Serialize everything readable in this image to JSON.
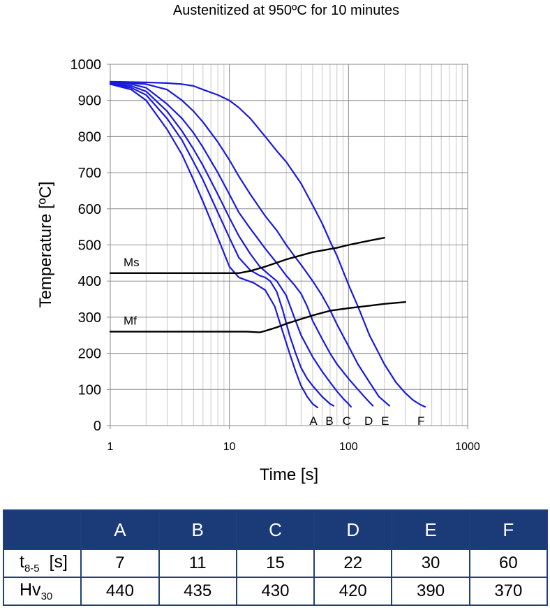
{
  "chart_data": {
    "type": "line",
    "title": "Austenitized at 950ºC for 10 minutes",
    "xlabel": "Time [s]",
    "ylabel": "Temperature [ºC]",
    "xscale": "log",
    "xlim": [
      1,
      1000
    ],
    "ylim": [
      0,
      1000
    ],
    "xticks": [
      1,
      10,
      100,
      1000
    ],
    "xtick_labels": [
      "1",
      "10",
      "100",
      "1000"
    ],
    "yticks": [
      0,
      100,
      200,
      300,
      400,
      500,
      600,
      700,
      800,
      900,
      1000
    ],
    "ytick_labels": [
      "0",
      "100",
      "200",
      "300",
      "400",
      "500",
      "600",
      "700",
      "800",
      "900",
      "1000"
    ],
    "grid": true,
    "series": [
      {
        "name": "A",
        "color": "#1a1adc",
        "x": [
          1,
          1.5,
          2,
          3,
          4,
          5,
          6,
          8,
          10,
          12,
          14,
          16,
          20,
          24,
          28,
          32,
          36,
          40,
          45,
          50,
          55
        ],
        "y": [
          945,
          930,
          900,
          820,
          750,
          680,
          620,
          520,
          440,
          410,
          402,
          395,
          375,
          330,
          260,
          200,
          150,
          110,
          80,
          60,
          50
        ]
      },
      {
        "name": "B",
        "color": "#1a1adc",
        "x": [
          1,
          1.5,
          2,
          3,
          4,
          5,
          6,
          8,
          10,
          12,
          15,
          18,
          20,
          22,
          25,
          28,
          32,
          36,
          40,
          45,
          50,
          60,
          70,
          75
        ],
        "y": [
          945,
          935,
          915,
          850,
          790,
          730,
          680,
          590,
          520,
          465,
          430,
          415,
          410,
          400,
          370,
          320,
          250,
          200,
          160,
          130,
          110,
          80,
          60,
          55
        ]
      },
      {
        "name": "C",
        "color": "#1a1adc",
        "x": [
          1,
          1.5,
          2,
          3,
          4,
          5,
          6,
          8,
          10,
          12,
          15,
          18,
          22,
          25,
          30,
          35,
          40,
          50,
          60,
          70,
          80,
          90,
          100,
          105
        ],
        "y": [
          945,
          940,
          925,
          870,
          815,
          765,
          720,
          640,
          575,
          525,
          475,
          440,
          415,
          400,
          360,
          300,
          250,
          190,
          150,
          120,
          95,
          75,
          60,
          52
        ]
      },
      {
        "name": "D",
        "color": "#1a1adc",
        "x": [
          1,
          1.5,
          2,
          3,
          4,
          5,
          6,
          8,
          10,
          12,
          15,
          20,
          25,
          30,
          35,
          40,
          45,
          50,
          60,
          70,
          80,
          100,
          120,
          140,
          160
        ],
        "y": [
          948,
          945,
          935,
          890,
          850,
          810,
          770,
          700,
          640,
          590,
          545,
          490,
          450,
          415,
          390,
          365,
          330,
          290,
          240,
          200,
          170,
          130,
          100,
          75,
          55
        ]
      },
      {
        "name": "E",
        "color": "#1a1adc",
        "x": [
          1,
          1.5,
          2,
          3,
          4,
          5,
          6,
          8,
          10,
          12,
          15,
          20,
          25,
          30,
          35,
          40,
          50,
          60,
          70,
          80,
          100,
          120,
          150,
          180,
          220
        ],
        "y": [
          950,
          948,
          945,
          930,
          900,
          870,
          840,
          785,
          735,
          690,
          640,
          580,
          540,
          500,
          470,
          445,
          400,
          360,
          320,
          280,
          220,
          170,
          120,
          80,
          55
        ]
      },
      {
        "name": "F",
        "color": "#1a1adc",
        "x": [
          1,
          2,
          3,
          4,
          5,
          6,
          8,
          10,
          12,
          15,
          20,
          25,
          30,
          40,
          50,
          60,
          70,
          80,
          100,
          120,
          150,
          200,
          250,
          300,
          350,
          400,
          440
        ],
        "y": [
          952,
          950,
          948,
          945,
          940,
          930,
          915,
          900,
          880,
          850,
          800,
          760,
          730,
          670,
          610,
          560,
          510,
          470,
          390,
          330,
          250,
          170,
          120,
          90,
          70,
          58,
          52
        ]
      },
      {
        "name": "Ms",
        "color": "#000000",
        "x": [
          1,
          2,
          5,
          10,
          12,
          15,
          20,
          30,
          50,
          80,
          100,
          150,
          200
        ],
        "y": [
          422,
          422,
          422,
          422,
          422,
          428,
          440,
          460,
          480,
          492,
          500,
          512,
          520
        ]
      },
      {
        "name": "Mf",
        "color": "#000000",
        "x": [
          1,
          2,
          5,
          10,
          14,
          18,
          20,
          25,
          30,
          40,
          50,
          70,
          100,
          150,
          200,
          300
        ],
        "y": [
          260,
          260,
          260,
          260,
          260,
          258,
          262,
          272,
          282,
          295,
          305,
          318,
          325,
          332,
          337,
          342
        ]
      }
    ]
  },
  "results_table": {
    "headers": [
      "A",
      "B",
      "C",
      "D",
      "E",
      "F"
    ],
    "t85": {
      "label_main": "t",
      "label_sub": "8-5",
      "label_unit": "[s]",
      "values": [
        "7",
        "11",
        "15",
        "22",
        "30",
        "60"
      ]
    },
    "hv": {
      "label_main": "Hv",
      "label_sub": "30",
      "values": [
        "440",
        "435",
        "430",
        "420",
        "390",
        "370"
      ]
    }
  }
}
